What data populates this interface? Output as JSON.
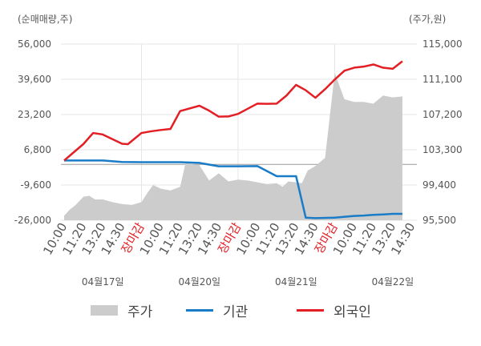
{
  "chart_data": {
    "type": "line",
    "left_axis_unit_label": "(순매매량,주)",
    "right_axis_unit_label": "(주가,원)",
    "left_ticks": [
      "56,000",
      "39,600",
      "23,200",
      "6,800",
      "-9,600",
      "-26,000"
    ],
    "right_ticks": [
      "115,000",
      "111,100",
      "107,200",
      "103,300",
      "99,400",
      "95,500"
    ],
    "left_ylim": [
      -26000,
      56000
    ],
    "right_ylim": [
      95500,
      115000
    ],
    "x_tick_labels": [
      "10:00",
      "11:20",
      "13:20",
      "14:30",
      "장마감",
      "10:00",
      "11:20",
      "13:20",
      "14:30",
      "장마감",
      "10:00",
      "11:20",
      "13:20",
      "14:30",
      "장마감",
      "10:00",
      "11:20",
      "13:20",
      "14:30"
    ],
    "market_close_label": "장마감",
    "day_labels": [
      "04월17일",
      "04월20일",
      "04월21일",
      "04월22일"
    ],
    "legend": [
      {
        "key": "price",
        "label": "주가"
      },
      {
        "key": "institution",
        "label": "기관"
      },
      {
        "key": "foreign",
        "label": "외국인"
      }
    ],
    "colors": {
      "price": "#cccccc",
      "institution": "#1a7cc7",
      "foreign": "#e31e24",
      "grid": "#e5e5e5",
      "divider": "#999999",
      "close_label": "#e31e24"
    },
    "series": [
      {
        "name": "외국인",
        "axis": "left",
        "x": [
          0,
          1,
          1.5,
          2,
          3,
          3.3,
          4,
          4.5,
          5,
          5.5,
          6,
          7,
          7.5,
          8,
          8.5,
          9,
          10,
          10.5,
          11,
          11.5,
          12,
          12.5,
          13,
          13.5,
          14,
          14.5,
          15,
          15.5,
          16,
          16.5,
          17,
          17.5
        ],
        "values": [
          1800,
          9500,
          14600,
          13900,
          9600,
          9400,
          14600,
          15400,
          16000,
          16500,
          24800,
          27300,
          25000,
          22200,
          22300,
          23500,
          28300,
          28200,
          28300,
          32000,
          37000,
          34500,
          31000,
          35000,
          39500,
          43600,
          45000,
          45500,
          46500,
          45000,
          44500,
          48000
        ]
      },
      {
        "name": "기관",
        "axis": "left",
        "x": [
          0,
          2,
          3,
          4,
          5,
          6,
          7,
          8,
          9,
          10,
          11,
          11.5,
          12,
          12.5,
          13,
          14,
          15,
          15.5,
          16,
          16.5,
          17,
          17.5
        ],
        "values": [
          1800,
          1800,
          1100,
          1000,
          1000,
          1000,
          700,
          -900,
          -900,
          -800,
          -5500,
          -5500,
          -5500,
          -24800,
          -25000,
          -24800,
          -24000,
          -23800,
          -23500,
          -23300,
          -23000,
          -23000
        ]
      },
      {
        "name": "주가",
        "axis": "right",
        "x": [
          0,
          0.3,
          0.6,
          1,
          1.3,
          1.6,
          2,
          2.5,
          3,
          3.5,
          4,
          4.3,
          4.6,
          5,
          5.5,
          6,
          6.3,
          6.6,
          7,
          7.5,
          8,
          8.5,
          9,
          9.5,
          10,
          10.5,
          11,
          11.3,
          11.6,
          12,
          12.3,
          12.6,
          13,
          13.5,
          14,
          14.5,
          15,
          15.5,
          16,
          16.5,
          17,
          17.5
        ],
        "values": [
          96000,
          96700,
          97200,
          98100,
          98200,
          97800,
          97800,
          97500,
          97300,
          97200,
          97500,
          98500,
          99400,
          99000,
          98800,
          99200,
          102000,
          101700,
          101600,
          99900,
          100700,
          99800,
          100000,
          99900,
          99700,
          99500,
          99600,
          99200,
          99800,
          99700,
          99600,
          101000,
          101500,
          102400,
          111800,
          108900,
          108600,
          108600,
          108400,
          109300,
          109100,
          109200
        ]
      }
    ]
  }
}
